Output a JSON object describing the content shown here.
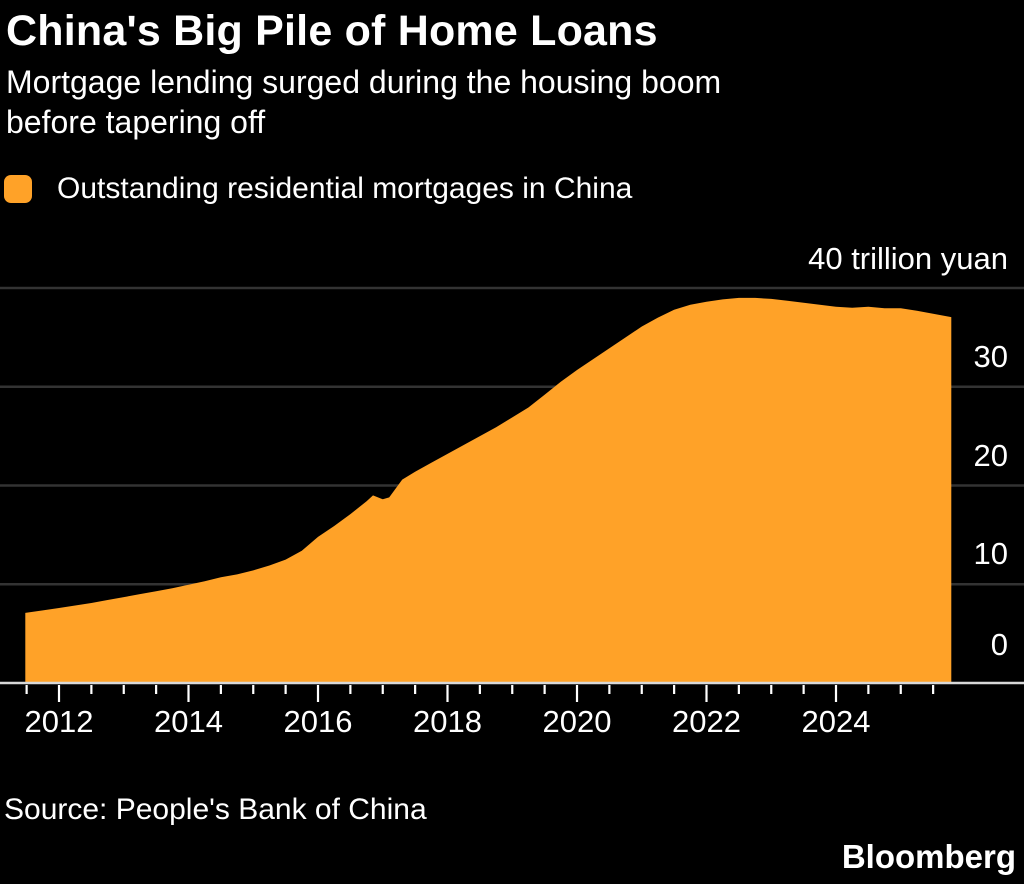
{
  "header": {
    "title": "China's Big Pile of Home Loans",
    "subtitle_line1": "Mortgage lending surged during the housing boom",
    "subtitle_line2": "before tapering off"
  },
  "legend": {
    "label": "Outstanding residential mortgages in China"
  },
  "axis": {
    "unit_label": "40 trillion yuan",
    "y_tick_labels": [
      "30",
      "20",
      "10",
      "0"
    ],
    "y_tick_values": [
      30,
      20,
      10,
      0
    ],
    "x_tick_labels": [
      "2012",
      "2014",
      "2016",
      "2018",
      "2020",
      "2022",
      "2024"
    ],
    "x_tick_years": [
      2012,
      2014,
      2016,
      2018,
      2020,
      2022,
      2024
    ]
  },
  "footer": {
    "source": "Source: People's Bank of China",
    "brand": "Bloomberg"
  },
  "colors": {
    "background": "#000000",
    "area": "#FFA228",
    "gridline": "#333333",
    "baseline": "#D8D8D8",
    "tick": "#FFFFFF",
    "text": "#FFFFFF"
  },
  "chart_data": {
    "type": "area",
    "title": "China's Big Pile of Home Loans",
    "subtitle": "Mortgage lending surged during the housing boom before tapering off",
    "series_name": "Outstanding residential mortgages in China",
    "unit": "trillion yuan",
    "source": "People's Bank of China",
    "x_range": [
      2011.48,
      2025.78
    ],
    "ylim": [
      0,
      40
    ],
    "gridlines_y": [
      10,
      20,
      30,
      40
    ],
    "x_minor_tick_step_years": 0.5,
    "x_major_tick_years": [
      2012,
      2014,
      2016,
      2018,
      2020,
      2022,
      2024
    ],
    "legend_position": "top-left",
    "grid": "horizontal-only",
    "points": [
      [
        2011.48,
        7.1
      ],
      [
        2011.75,
        7.35
      ],
      [
        2012.0,
        7.6
      ],
      [
        2012.25,
        7.85
      ],
      [
        2012.5,
        8.1
      ],
      [
        2012.75,
        8.4
      ],
      [
        2013.0,
        8.7
      ],
      [
        2013.25,
        9.0
      ],
      [
        2013.5,
        9.3
      ],
      [
        2013.75,
        9.6
      ],
      [
        2014.0,
        9.95
      ],
      [
        2014.25,
        10.3
      ],
      [
        2014.5,
        10.7
      ],
      [
        2014.75,
        11.0
      ],
      [
        2015.0,
        11.4
      ],
      [
        2015.25,
        11.9
      ],
      [
        2015.5,
        12.5
      ],
      [
        2015.75,
        13.4
      ],
      [
        2016.0,
        14.8
      ],
      [
        2016.25,
        15.9
      ],
      [
        2016.5,
        17.1
      ],
      [
        2016.75,
        18.4
      ],
      [
        2016.85,
        19.0
      ],
      [
        2017.0,
        18.6
      ],
      [
        2017.1,
        18.8
      ],
      [
        2017.3,
        20.6
      ],
      [
        2017.5,
        21.4
      ],
      [
        2017.75,
        22.3
      ],
      [
        2018.0,
        23.2
      ],
      [
        2018.25,
        24.1
      ],
      [
        2018.5,
        25.0
      ],
      [
        2018.75,
        25.9
      ],
      [
        2019.0,
        26.9
      ],
      [
        2019.25,
        27.9
      ],
      [
        2019.5,
        29.2
      ],
      [
        2019.75,
        30.5
      ],
      [
        2020.0,
        31.7
      ],
      [
        2020.25,
        32.8
      ],
      [
        2020.5,
        33.9
      ],
      [
        2020.75,
        35.0
      ],
      [
        2021.0,
        36.1
      ],
      [
        2021.25,
        37.0
      ],
      [
        2021.5,
        37.8
      ],
      [
        2021.75,
        38.3
      ],
      [
        2022.0,
        38.6
      ],
      [
        2022.25,
        38.85
      ],
      [
        2022.5,
        39.0
      ],
      [
        2022.75,
        39.0
      ],
      [
        2023.0,
        38.9
      ],
      [
        2023.25,
        38.7
      ],
      [
        2023.5,
        38.5
      ],
      [
        2023.75,
        38.3
      ],
      [
        2024.0,
        38.1
      ],
      [
        2024.25,
        38.0
      ],
      [
        2024.5,
        38.1
      ],
      [
        2024.75,
        37.95
      ],
      [
        2025.0,
        37.95
      ],
      [
        2025.25,
        37.7
      ],
      [
        2025.5,
        37.4
      ],
      [
        2025.78,
        37.05
      ]
    ]
  }
}
